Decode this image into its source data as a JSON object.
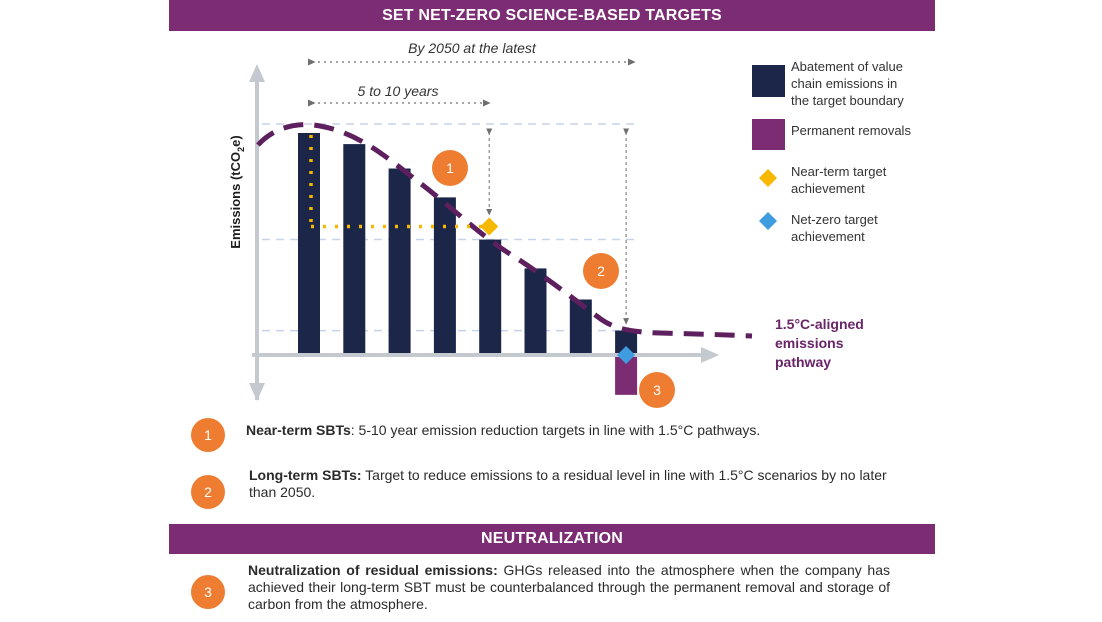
{
  "banners": {
    "top": "SET NET-ZERO SCIENCE-BASED TARGETS",
    "bottom": "NEUTRALIZATION"
  },
  "chart_data": {
    "type": "bar",
    "ylabel": "Emissions (tCO2e)",
    "ylabel_parts": {
      "main": "Emissions (tCO",
      "sub": "2",
      "tail": "e)"
    },
    "values": [
      100,
      95,
      84,
      71,
      52,
      39,
      25,
      11
    ],
    "removal_value": -13,
    "grid": true,
    "annotations": {
      "span_long": "By 2050 at the latest",
      "span_short": "5 to 10 years"
    },
    "colors": {
      "bar": "#1b2649",
      "removal": "#7b2c73",
      "pathway": "#5e1f5e",
      "near_term_marker": "#f6b800",
      "net_zero_marker": "#3f9ddf",
      "circle": "#ee7d32",
      "grid": "#c8d3e8",
      "axis": "#c4c9cf"
    }
  },
  "legend": [
    {
      "label": "Abatement of value chain emissions in the target boundary",
      "lines": [
        "Abatement of value",
        "chain emissions in",
        "the target boundary"
      ],
      "icon": "navy-square-icon"
    },
    {
      "label": "Permanent removals",
      "lines": [
        "Permanent removals"
      ],
      "icon": "purple-square-icon"
    },
    {
      "label": "Near-term target achievement",
      "lines": [
        "Near-term target",
        "achievement"
      ],
      "icon": "yellow-diamond-icon"
    },
    {
      "label": "Net-zero target achievement",
      "lines": [
        "Net-zero target",
        "achievement"
      ],
      "icon": "blue-diamond-icon"
    }
  ],
  "pathway_label": "1.5°C-aligned emissions pathway",
  "chart_markers": {
    "m1": "1",
    "m2": "2",
    "m3": "3"
  },
  "notes": [
    {
      "number": "1",
      "title": "Near-term SBTs",
      "text": ": 5-10 year emission reduction targets in line with 1.5°C pathways."
    },
    {
      "number": "2",
      "title": "Long-term SBTs:",
      "text": " Target to reduce emissions to a residual level in line with 1.5°C scenarios by no later than 2050."
    },
    {
      "number": "3",
      "title": "Neutralization of residual emissions:",
      "text": " GHGs released into the atmosphere when the company has achieved their long-term SBT must be counterbalanced through the permanent removal and storage of carbon from the atmosphere."
    }
  ]
}
